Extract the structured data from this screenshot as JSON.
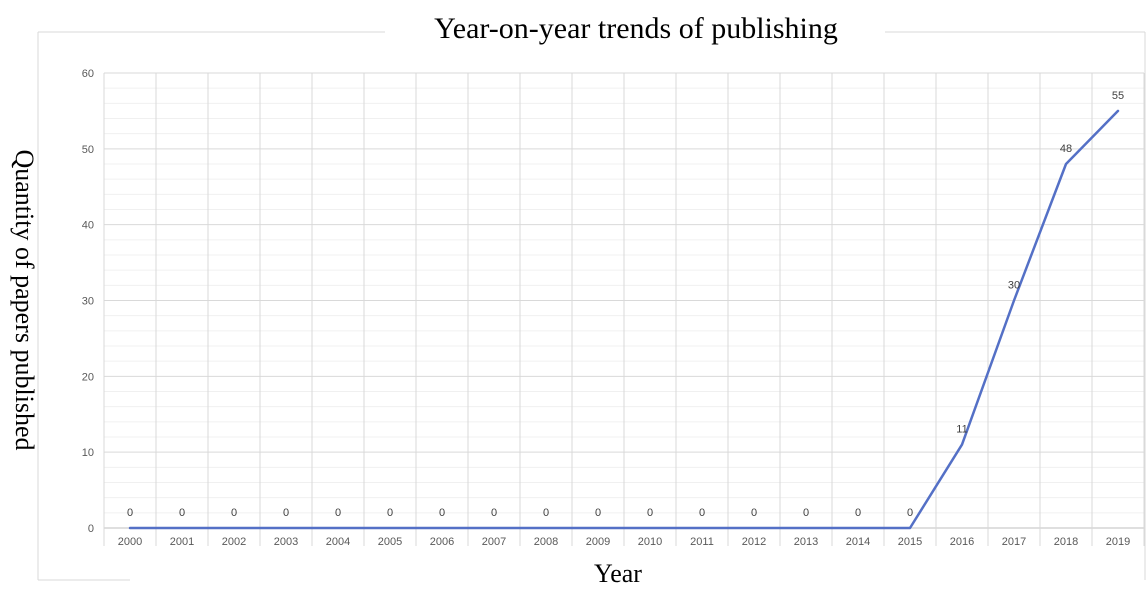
{
  "chart_data": {
    "type": "line",
    "title": "Year-on-year trends of publishing",
    "xlabel": "Year",
    "ylabel": "Quantity of papers published",
    "categories": [
      "2000",
      "2001",
      "2002",
      "2003",
      "2004",
      "2005",
      "2006",
      "2007",
      "2008",
      "2009",
      "2010",
      "2011",
      "2012",
      "2013",
      "2014",
      "2015",
      "2016",
      "2017",
      "2018",
      "2019"
    ],
    "series": [
      {
        "values": [
          0,
          0,
          0,
          0,
          0,
          0,
          0,
          0,
          0,
          0,
          0,
          0,
          0,
          0,
          0,
          0,
          11,
          30,
          48,
          55
        ],
        "color": "#5470C6"
      }
    ],
    "ylim": [
      0,
      60
    ],
    "yticks": [
      0,
      10,
      20,
      30,
      40,
      50,
      60
    ],
    "grid": true,
    "data_labels": true,
    "legend": "none"
  }
}
